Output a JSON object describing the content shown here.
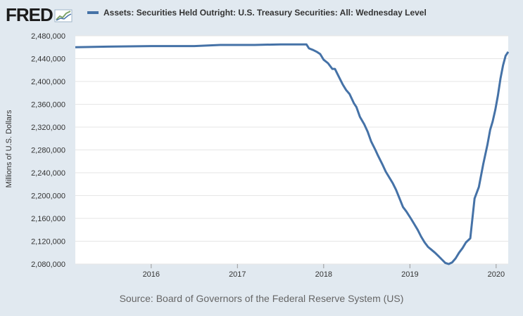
{
  "logo": {
    "text": "FRED",
    "icon": "fred-graph-icon"
  },
  "source": "Source: Board of Governors of the Federal Reserve System (US)",
  "colors": {
    "series": "#4572a7",
    "grid": "#e6e6e6",
    "plot_bg": "#ffffff",
    "page_bg": "#e1e9f0"
  },
  "chart_data": {
    "type": "line",
    "title": "",
    "xlabel": "",
    "ylabel": "Millions of U.S. Dollars",
    "series_legend_label": "Assets: Securities Held Outright: U.S. Treasury Securities: All: Wednesday Level",
    "x_ticks": [
      "2016",
      "2017",
      "2018",
      "2019",
      "2020"
    ],
    "y_ticks": [
      "2,080,000",
      "2,120,000",
      "2,160,000",
      "2,200,000",
      "2,240,000",
      "2,280,000",
      "2,320,000",
      "2,360,000",
      "2,400,000",
      "2,440,000",
      "2,480,000"
    ],
    "xlim": [
      2015.12,
      2020.14
    ],
    "ylim": [
      2080000,
      2480000
    ],
    "grid": "horizontal",
    "legend_position": "top",
    "series": [
      {
        "name": "Assets: Securities Held Outright: U.S. Treasury Securities: All: Wednesday Level",
        "x": [
          2015.12,
          2015.5,
          2016.0,
          2016.5,
          2016.8,
          2017.0,
          2017.2,
          2017.5,
          2017.8,
          2017.83,
          2017.88,
          2017.92,
          2017.96,
          2018.0,
          2018.05,
          2018.1,
          2018.13,
          2018.17,
          2018.22,
          2018.26,
          2018.3,
          2018.35,
          2018.38,
          2018.42,
          2018.47,
          2018.51,
          2018.55,
          2018.6,
          2018.63,
          2018.68,
          2018.72,
          2018.76,
          2018.8,
          2018.84,
          2018.88,
          2018.92,
          2018.96,
          2019.01,
          2019.05,
          2019.09,
          2019.13,
          2019.17,
          2019.21,
          2019.25,
          2019.29,
          2019.33,
          2019.37,
          2019.41,
          2019.45,
          2019.49,
          2019.53,
          2019.57,
          2019.61,
          2019.65,
          2019.7,
          2019.75,
          2019.8,
          2019.85,
          2019.9,
          2019.93,
          2019.96,
          2019.99,
          2020.02,
          2020.05,
          2020.08,
          2020.11,
          2020.14
        ],
        "values": [
          2460000,
          2461000,
          2462000,
          2462000,
          2464000,
          2464000,
          2464000,
          2465000,
          2465000,
          2458000,
          2455000,
          2452000,
          2448000,
          2438000,
          2432000,
          2422000,
          2422000,
          2410000,
          2395000,
          2385000,
          2378000,
          2362000,
          2355000,
          2338000,
          2325000,
          2312000,
          2295000,
          2280000,
          2270000,
          2255000,
          2242000,
          2232000,
          2222000,
          2210000,
          2195000,
          2180000,
          2172000,
          2160000,
          2150000,
          2140000,
          2128000,
          2118000,
          2110000,
          2105000,
          2100000,
          2094000,
          2088000,
          2082000,
          2080000,
          2083000,
          2090000,
          2100000,
          2108000,
          2118000,
          2125000,
          2195000,
          2215000,
          2255000,
          2290000,
          2315000,
          2330000,
          2350000,
          2375000,
          2405000,
          2428000,
          2445000,
          2452000
        ]
      }
    ]
  }
}
